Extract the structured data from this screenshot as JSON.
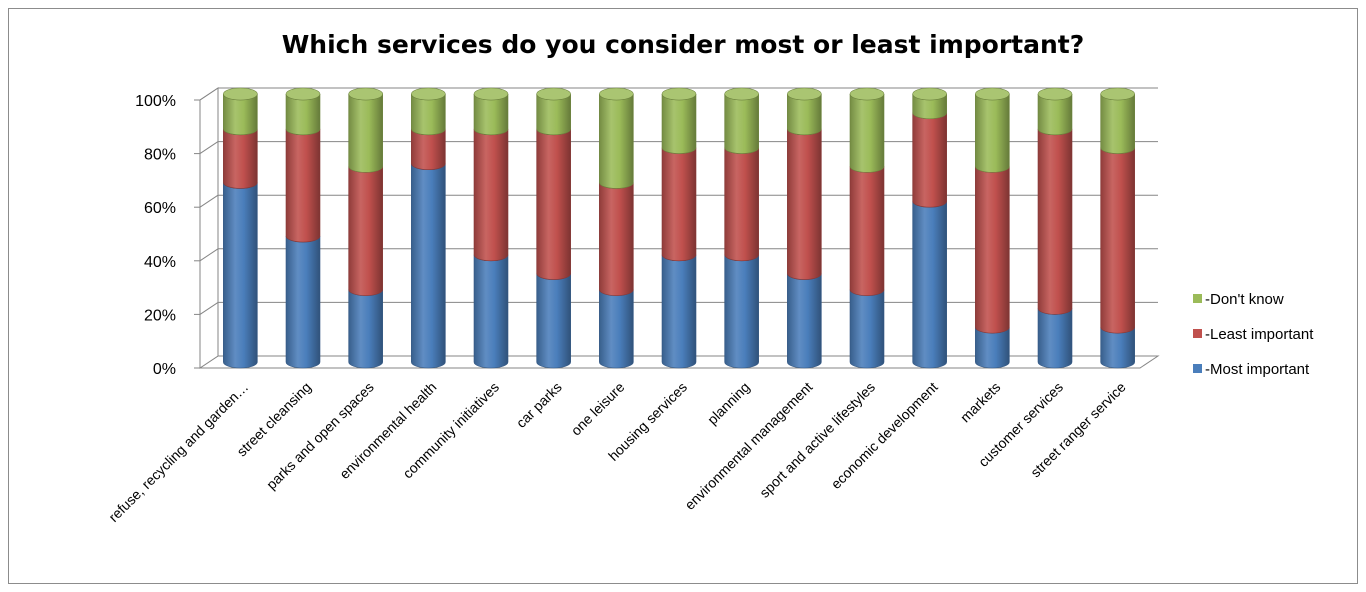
{
  "chart_data": {
    "type": "bar",
    "stacked": true,
    "percent_stacked": true,
    "three_d": true,
    "title": "Which services do you consider most or least important?",
    "xlabel": "",
    "ylabel": "",
    "ylim": [
      0,
      100
    ],
    "y_ticks": [
      "0%",
      "20%",
      "40%",
      "60%",
      "80%",
      "100%"
    ],
    "grid": true,
    "legend_position": "right",
    "categories": [
      "refuse, recycling and garden…",
      "street cleansing",
      "parks and open spaces",
      "environmental health",
      "community initiatives",
      "car parks",
      "one leisure",
      "housing services",
      "planning",
      "environmental management",
      "sport and active lifestyles",
      "economic development",
      "markets",
      "customer services",
      "street ranger service"
    ],
    "series": [
      {
        "name": "-Most important",
        "color": "#4a7ebb",
        "values": [
          67,
          47,
          27,
          74,
          40,
          33,
          27,
          40,
          40,
          33,
          27,
          60,
          13,
          20,
          13
        ]
      },
      {
        "name": "-Least important",
        "color": "#c0504d",
        "values": [
          20,
          40,
          46,
          13,
          47,
          54,
          40,
          40,
          40,
          54,
          46,
          33,
          60,
          67,
          67
        ]
      },
      {
        "name": "-Don't know",
        "color": "#9bbb59",
        "values": [
          13,
          13,
          27,
          13,
          13,
          13,
          33,
          20,
          20,
          13,
          27,
          7,
          27,
          13,
          20
        ]
      }
    ]
  }
}
